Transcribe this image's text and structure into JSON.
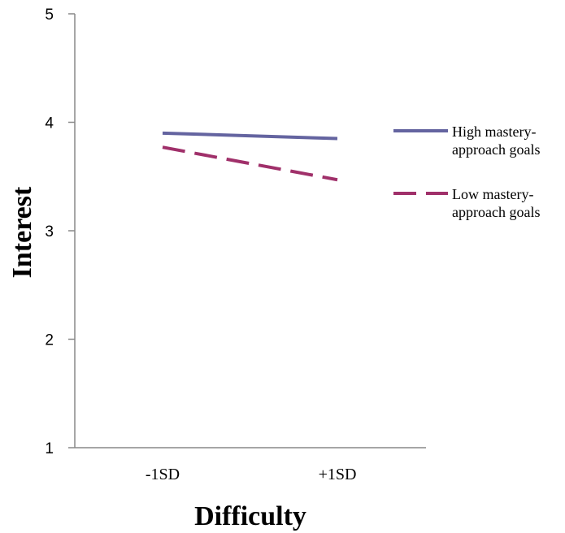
{
  "chart_data": {
    "type": "line",
    "xlabel": "Difficulty",
    "ylabel": "Interest",
    "categories": [
      "-1SD",
      "+1SD"
    ],
    "ylim": [
      1,
      5
    ],
    "yticks": [
      "1",
      "2",
      "3",
      "4",
      "5"
    ],
    "grid": false,
    "legend_position": "right",
    "series": [
      {
        "name": "High mastery-approach goals",
        "name_lines": [
          "High mastery-",
          "approach goals"
        ],
        "values": [
          3.9,
          3.85
        ],
        "color": "#6464a0",
        "style": "solid"
      },
      {
        "name": "Low mastery-approach goals",
        "name_lines": [
          "Low mastery-",
          "approach goals"
        ],
        "values": [
          3.77,
          3.47
        ],
        "color": "#a0306a",
        "style": "dashed"
      }
    ]
  }
}
